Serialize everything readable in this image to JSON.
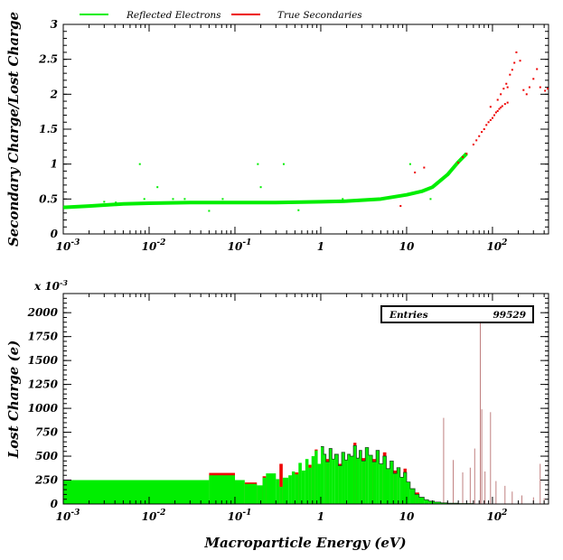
{
  "chart_data": [
    {
      "type": "scatter",
      "ylabel": "Secondary Charge/Lost Charge",
      "xscale": "log",
      "xlim": [
        0.001,
        450
      ],
      "ylim": [
        0,
        3
      ],
      "yticks": [
        "0",
        "0.5",
        "1",
        "1.5",
        "2",
        "2.5",
        "3"
      ],
      "xticks": [
        {
          "base": "10",
          "exp": "-3"
        },
        {
          "base": "10",
          "exp": "-2"
        },
        {
          "base": "10",
          "exp": "-1"
        },
        {
          "base": "1",
          "exp": ""
        },
        {
          "base": "10",
          "exp": ""
        },
        {
          "base": "10",
          "exp": "2"
        }
      ],
      "legend": {
        "placement": "top-left"
      },
      "series": [
        {
          "name": "Reflected Electrons",
          "color": "#00ee00",
          "curve_x": [
            0.001,
            0.002,
            0.005,
            0.01,
            0.03,
            0.1,
            0.3,
            1,
            2,
            5,
            10,
            15,
            20,
            30,
            40,
            50
          ],
          "curve_y": [
            0.38,
            0.4,
            0.43,
            0.44,
            0.45,
            0.45,
            0.45,
            0.46,
            0.47,
            0.5,
            0.56,
            0.61,
            0.67,
            0.85,
            1.03,
            1.15
          ],
          "outliers": [
            [
              0.0078,
              1.0
            ],
            [
              0.0088,
              0.5
            ],
            [
              0.0125,
              0.67
            ],
            [
              0.019,
              0.5
            ],
            [
              0.185,
              1.0
            ],
            [
              0.37,
              1.0
            ],
            [
              11,
              1.0
            ],
            [
              19,
              0.5
            ],
            [
              0.003,
              0.46
            ],
            [
              0.026,
              0.5
            ],
            [
              0.05,
              0.33
            ],
            [
              0.072,
              0.5
            ],
            [
              0.2,
              0.67
            ],
            [
              0.55,
              0.34
            ],
            [
              1.8,
              0.5
            ],
            [
              4.2,
              0.5
            ],
            [
              0.0041,
              0.45
            ]
          ]
        },
        {
          "name": "True Secondaries",
          "color": "#ee0000",
          "points": [
            [
              40,
              1.02
            ],
            [
              45,
              1.1
            ],
            [
              50,
              1.15
            ],
            [
              60,
              1.28
            ],
            [
              65,
              1.34
            ],
            [
              70,
              1.4
            ],
            [
              75,
              1.46
            ],
            [
              80,
              1.5
            ],
            [
              85,
              1.56
            ],
            [
              90,
              1.6
            ],
            [
              95,
              1.63
            ],
            [
              100,
              1.66
            ],
            [
              105,
              1.7
            ],
            [
              110,
              1.74
            ],
            [
              115,
              1.76
            ],
            [
              120,
              1.79
            ],
            [
              125,
              1.81
            ],
            [
              130,
              1.83
            ],
            [
              140,
              1.86
            ],
            [
              150,
              1.88
            ],
            [
              95,
              1.82
            ],
            [
              125,
              2.0
            ],
            [
              135,
              2.08
            ],
            [
              145,
              2.15
            ],
            [
              160,
              2.28
            ],
            [
              180,
              2.45
            ],
            [
              190,
              2.6
            ],
            [
              210,
              2.48
            ],
            [
              230,
              2.06
            ],
            [
              250,
              2.0
            ],
            [
              270,
              2.1
            ],
            [
              300,
              2.22
            ],
            [
              330,
              2.36
            ],
            [
              360,
              2.1
            ],
            [
              410,
              2.05
            ],
            [
              440,
              2.08
            ],
            [
              150,
              2.1
            ],
            [
              170,
              2.35
            ],
            [
              115,
              1.92
            ],
            [
              12.5,
              0.88
            ],
            [
              16,
              0.95
            ],
            [
              8.5,
              0.4
            ]
          ]
        }
      ]
    },
    {
      "type": "histogram",
      "ylabel": "Lost Charge (e)",
      "xlabel": "Macroparticle Energy (eV)",
      "xscale": "log",
      "xlim": [
        0.001,
        450
      ],
      "ylim": [
        0,
        2200
      ],
      "yticks": [
        "0",
        "250",
        "500",
        "750",
        "1000",
        "1250",
        "1500",
        "1750",
        "2000"
      ],
      "ymultiplier": {
        "base": "x 10",
        "exp": "-3"
      },
      "stats": {
        "label": "Entries",
        "value": "99529"
      },
      "series": [
        {
          "name": "Reflected Electrons",
          "color": "#00ee00",
          "bins": [
            [
              0.001,
              0.05,
              250
            ],
            [
              0.05,
              0.1,
              300
            ],
            [
              0.1,
              0.13,
              250
            ],
            [
              0.13,
              0.18,
              210
            ],
            [
              0.18,
              0.21,
              195
            ],
            [
              0.21,
              0.23,
              275
            ],
            [
              0.23,
              0.3,
              320
            ],
            [
              0.3,
              0.33,
              260
            ],
            [
              0.33,
              0.36,
              180
            ],
            [
              0.36,
              0.42,
              275
            ],
            [
              0.42,
              0.46,
              300
            ],
            [
              0.46,
              0.5,
              340
            ],
            [
              0.5,
              0.55,
              310
            ],
            [
              0.55,
              0.6,
              430
            ],
            [
              0.6,
              0.66,
              350
            ],
            [
              0.66,
              0.72,
              470
            ],
            [
              0.72,
              0.78,
              380
            ],
            [
              0.78,
              0.85,
              500
            ],
            [
              0.85,
              0.92,
              560
            ],
            [
              0.92,
              1.0,
              420
            ],
            [
              1.0,
              1.08,
              600
            ],
            [
              1.08,
              1.15,
              520
            ],
            [
              1.15,
              1.25,
              440
            ],
            [
              1.25,
              1.35,
              580
            ],
            [
              1.35,
              1.45,
              470
            ],
            [
              1.45,
              1.6,
              520
            ],
            [
              1.6,
              1.75,
              400
            ],
            [
              1.75,
              1.9,
              540
            ],
            [
              1.9,
              2.05,
              460
            ],
            [
              2.05,
              2.2,
              520
            ],
            [
              2.2,
              2.4,
              500
            ],
            [
              2.4,
              2.6,
              610
            ],
            [
              2.6,
              2.8,
              480
            ],
            [
              2.8,
              3.0,
              560
            ],
            [
              3.0,
              3.3,
              450
            ],
            [
              3.3,
              3.6,
              590
            ],
            [
              3.6,
              4.0,
              510
            ],
            [
              4.0,
              4.4,
              440
            ],
            [
              4.4,
              4.8,
              560
            ],
            [
              4.8,
              5.3,
              420
            ],
            [
              5.3,
              5.8,
              500
            ],
            [
              5.8,
              6.4,
              370
            ],
            [
              6.4,
              7.0,
              450
            ],
            [
              7.0,
              7.7,
              320
            ],
            [
              7.7,
              8.4,
              380
            ],
            [
              8.4,
              9.2,
              280
            ],
            [
              9.2,
              10,
              330
            ],
            [
              10,
              11,
              230
            ],
            [
              11,
              12.5,
              160
            ],
            [
              12.5,
              14,
              100
            ],
            [
              14,
              16,
              70
            ],
            [
              16,
              18,
              45
            ],
            [
              18,
              21,
              30
            ],
            [
              21,
              25,
              20
            ],
            [
              25,
              30,
              12
            ],
            [
              30,
              40,
              8
            ],
            [
              40,
              60,
              5
            ]
          ]
        },
        {
          "name": "True Secondaries",
          "color": "#ee0000",
          "bins": [
            [
              0.05,
              0.1,
              325
            ],
            [
              0.13,
              0.18,
              225
            ],
            [
              0.21,
              0.23,
              290
            ],
            [
              0.33,
              0.36,
              420
            ],
            [
              0.5,
              0.55,
              330
            ],
            [
              0.72,
              0.78,
              410
            ],
            [
              0.85,
              0.92,
              570
            ],
            [
              1.15,
              1.25,
              470
            ],
            [
              1.6,
              1.75,
              420
            ],
            [
              2.4,
              2.6,
              640
            ],
            [
              3.0,
              3.3,
              480
            ],
            [
              4.0,
              4.4,
              470
            ],
            [
              5.3,
              5.8,
              540
            ],
            [
              7.0,
              7.7,
              350
            ],
            [
              9.2,
              10,
              370
            ],
            [
              12.5,
              14,
              120
            ]
          ],
          "spikes": [
            [
              27,
              900
            ],
            [
              35,
              460
            ],
            [
              45,
              330
            ],
            [
              55,
              380
            ],
            [
              62,
              580
            ],
            [
              72,
              1950
            ],
            [
              75,
              990
            ],
            [
              82,
              340
            ],
            [
              95,
              960
            ],
            [
              110,
              240
            ],
            [
              140,
              190
            ],
            [
              170,
              130
            ],
            [
              220,
              90
            ],
            [
              300,
              70
            ],
            [
              360,
              420
            ],
            [
              400,
              60
            ]
          ]
        }
      ]
    }
  ]
}
